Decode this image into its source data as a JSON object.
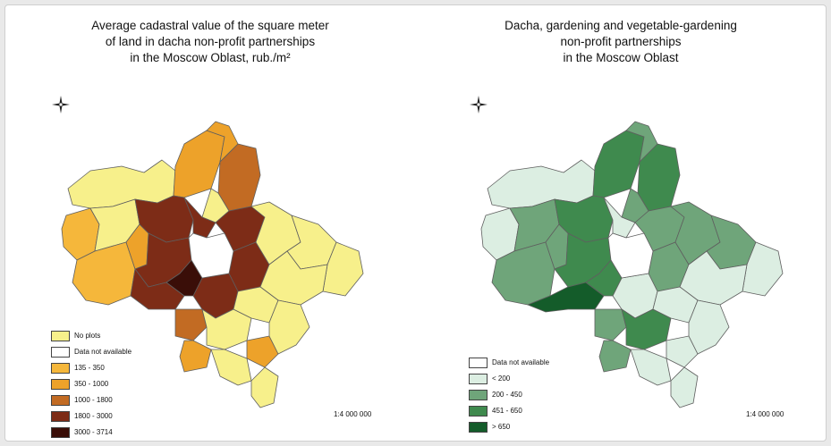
{
  "left_map": {
    "title_lines": [
      "Average cadastral value of the square meter",
      "of land in dacha non-profit partnerships",
      "in the Moscow Oblast, rub./m²"
    ],
    "legend": [
      {
        "label": "No plots",
        "color": "#f7f08b"
      },
      {
        "label": "Data not available",
        "color": "#ffffff"
      },
      {
        "label": "135 - 350",
        "color": "#f5b73b"
      },
      {
        "label": "350 - 1000",
        "color": "#eda22a"
      },
      {
        "label": "1000 - 1800",
        "color": "#c26b23"
      },
      {
        "label": "1800 - 3000",
        "color": "#7d2c17"
      },
      {
        "label": "3000 - 3714",
        "color": "#3a0e08"
      }
    ],
    "scale": "1:4 000 000"
  },
  "right_map": {
    "title_lines": [
      "Dacha, gardening and vegetable-gardening",
      "non-profit partnerships",
      "in the Moscow Oblast"
    ],
    "legend": [
      {
        "label": "Data not available",
        "color": "#ffffff"
      },
      {
        "label": "< 200",
        "color": "#dceee2"
      },
      {
        "label": "200 - 450",
        "color": "#6fa57a"
      },
      {
        "label": "451 - 650",
        "color": "#3f8a4e"
      },
      {
        "label": "> 650",
        "color": "#145c2a"
      }
    ],
    "scale": "1:4 000 000"
  }
}
